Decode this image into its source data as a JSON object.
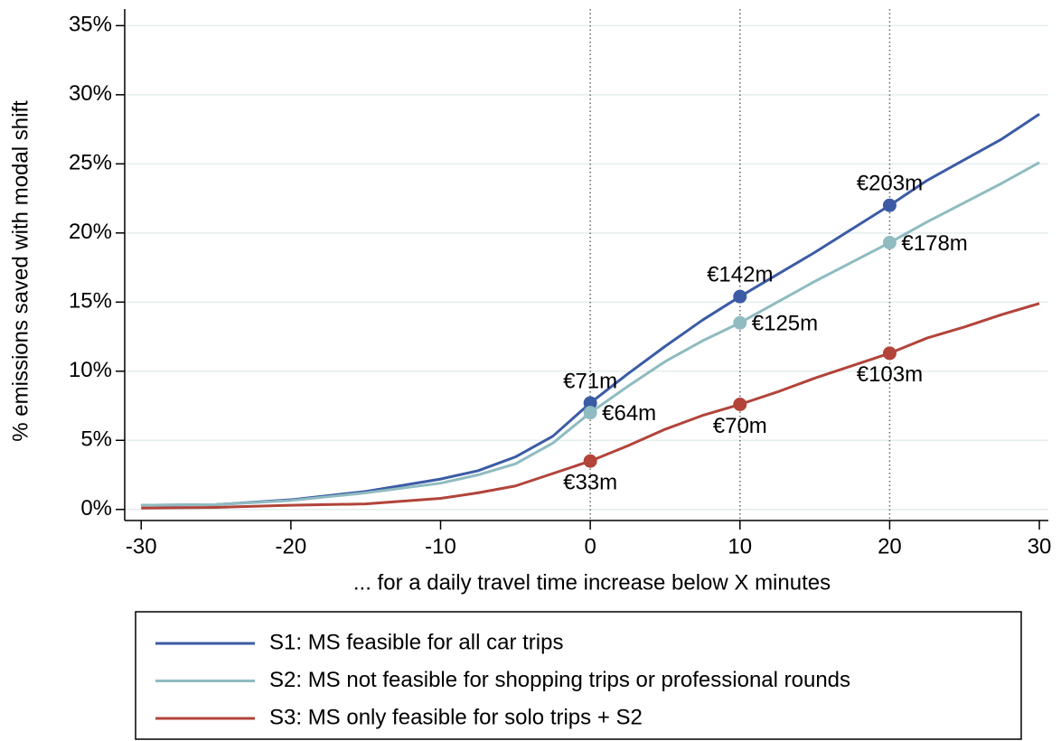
{
  "chart_data": {
    "type": "line",
    "x_label": "... for a daily travel time increase below X minutes",
    "y_label": "% emissions saved with modal shift",
    "xlim": [
      -31.1,
      30.6
    ],
    "ylim": [
      -0.8,
      36.2
    ],
    "xticks": [
      -30,
      -20,
      -10,
      0,
      10,
      20,
      30
    ],
    "yticks": [
      {
        "value": 0,
        "label": "0%"
      },
      {
        "value": 5,
        "label": "5%"
      },
      {
        "value": 10,
        "label": "10%"
      },
      {
        "value": 15,
        "label": "15%"
      },
      {
        "value": 20,
        "label": "20%"
      },
      {
        "value": 25,
        "label": "25%"
      },
      {
        "value": 30,
        "label": "30%"
      },
      {
        "value": 35,
        "label": "35%"
      }
    ],
    "grid": true,
    "vlines": [
      0,
      10,
      20
    ],
    "legend": "bottom",
    "x": [
      -30,
      -25,
      -20,
      -15,
      -10,
      -7.5,
      -5,
      -2.5,
      0,
      2.5,
      5,
      7.5,
      10,
      12.5,
      15,
      17.5,
      20,
      22.5,
      25,
      27.5,
      30
    ],
    "series": [
      {
        "name": "S1: MS feasible for all car trips",
        "color": "#3b5ba5",
        "values": [
          0.3,
          0.35,
          0.7,
          1.3,
          2.2,
          2.8,
          3.8,
          5.3,
          7.7,
          9.8,
          11.8,
          13.7,
          15.4,
          17,
          18.6,
          20.3,
          22,
          23.8,
          25.3,
          26.8,
          28.6
        ],
        "markers": {
          "x": [
            0,
            10,
            20
          ],
          "values": [
            7.7,
            15.4,
            22
          ],
          "labels": [
            "€71m",
            "€142m",
            "€203m"
          ],
          "label_position": "above"
        }
      },
      {
        "name": "S2: MS not feasible for shopping trips or professional rounds",
        "color": "#8fbbc1",
        "values": [
          0.3,
          0.35,
          0.65,
          1.2,
          1.9,
          2.5,
          3.3,
          4.8,
          7.0,
          8.9,
          10.7,
          12.2,
          13.5,
          15,
          16.5,
          17.9,
          19.3,
          20.8,
          22.2,
          23.6,
          25.1
        ],
        "markers": {
          "x": [
            0,
            10,
            20
          ],
          "values": [
            7.0,
            13.5,
            19.3
          ],
          "labels": [
            "€64m",
            "€125m",
            "€178m"
          ],
          "label_position": "right"
        }
      },
      {
        "name": "S3: MS only feasible for solo trips + S2",
        "color": "#b2443a",
        "values": [
          0.1,
          0.15,
          0.3,
          0.4,
          0.8,
          1.2,
          1.7,
          2.6,
          3.5,
          4.6,
          5.8,
          6.8,
          7.6,
          8.5,
          9.5,
          10.4,
          11.3,
          12.4,
          13.2,
          14.1,
          14.9
        ],
        "markers": {
          "x": [
            0,
            10,
            20
          ],
          "values": [
            3.5,
            7.6,
            11.3
          ],
          "labels": [
            "€33m",
            "€70m",
            "€103m"
          ],
          "label_position": "below"
        }
      }
    ]
  }
}
